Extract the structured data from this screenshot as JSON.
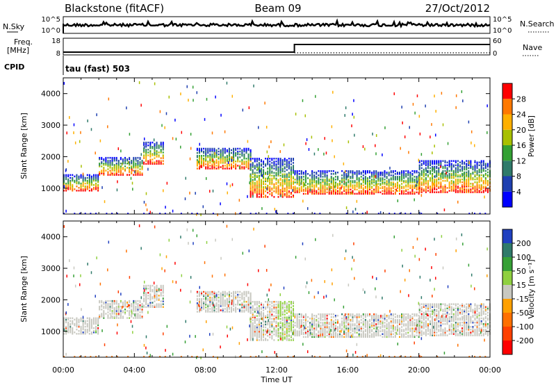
{
  "header": {
    "title_left": "Blackstone (fitACF)",
    "title_center": "Beam 09",
    "title_right": "27/Oct/2012"
  },
  "top_panel": {
    "left_label": "N.Sky",
    "right_label": "N.Search",
    "left_ticks": [
      "10^5",
      "10^0"
    ],
    "right_ticks": [
      "10^5",
      "10^0"
    ]
  },
  "freq_panel": {
    "left_label_1": "Freq.",
    "left_label_2": "[MHz]",
    "right_label": "Nave",
    "left_ticks": [
      "18",
      "8"
    ],
    "right_ticks": [
      "60",
      "0"
    ],
    "freq_step_time_ut": 13.0
  },
  "cpid": {
    "label": "CPID",
    "value": "tau (fast) 503"
  },
  "chart_data": [
    {
      "type": "heatmap",
      "name": "power",
      "ylabel": "Slant Range [km]",
      "xlabel": "",
      "x_ticks": [
        "00:00",
        "04:00",
        "08:00",
        "12:00",
        "16:00",
        "20:00",
        "00:00"
      ],
      "y_ticks": [
        "1000",
        "2000",
        "3000",
        "4000"
      ],
      "xlim_hours": [
        0,
        24
      ],
      "ylim_km": [
        180,
        4500
      ],
      "colorbar": {
        "label": "Power [dB]",
        "ticks": [
          "4",
          "8",
          "12",
          "16",
          "20",
          "24",
          "28"
        ],
        "colors": [
          "#0000ff",
          "#1e3fb0",
          "#2f7a6a",
          "#33a033",
          "#a8c000",
          "#ffb000",
          "#ff7800",
          "#ff0000"
        ]
      },
      "echo_bands": [
        {
          "start_h": 0.0,
          "end_h": 2.0,
          "lower_km": 950,
          "upper_km": 1450
        },
        {
          "start_h": 2.0,
          "end_h": 4.5,
          "lower_km": 1450,
          "upper_km": 2000
        },
        {
          "start_h": 4.5,
          "end_h": 5.6,
          "lower_km": 1800,
          "upper_km": 2500
        },
        {
          "start_h": 7.5,
          "end_h": 10.5,
          "lower_km": 1650,
          "upper_km": 2300
        },
        {
          "start_h": 10.5,
          "end_h": 13.0,
          "lower_km": 750,
          "upper_km": 2000
        },
        {
          "start_h": 13.0,
          "end_h": 20.0,
          "lower_km": 850,
          "upper_km": 1600
        },
        {
          "start_h": 20.0,
          "end_h": 24.0,
          "lower_km": 900,
          "upper_km": 1900
        }
      ]
    },
    {
      "type": "heatmap",
      "name": "velocity",
      "ylabel": "Slant Range [km]",
      "xlabel": "Time UT",
      "x_ticks": [
        "00:00",
        "04:00",
        "08:00",
        "12:00",
        "16:00",
        "20:00",
        "00:00"
      ],
      "y_ticks": [
        "1000",
        "2000",
        "3000",
        "4000"
      ],
      "xlim_hours": [
        0,
        24
      ],
      "ylim_km": [
        180,
        4500
      ],
      "colorbar": {
        "label": "Velocity [m s⁻¹]",
        "ticks": [
          "200",
          "100",
          "50",
          "15",
          "-15",
          "-50",
          "-100",
          "-200"
        ],
        "colors": [
          "#2040c0",
          "#2f7a6a",
          "#36a036",
          "#8fd040",
          "#c8c8c0",
          "#ffa000",
          "#ff7000",
          "#ff4000",
          "#ff0000"
        ]
      }
    }
  ]
}
